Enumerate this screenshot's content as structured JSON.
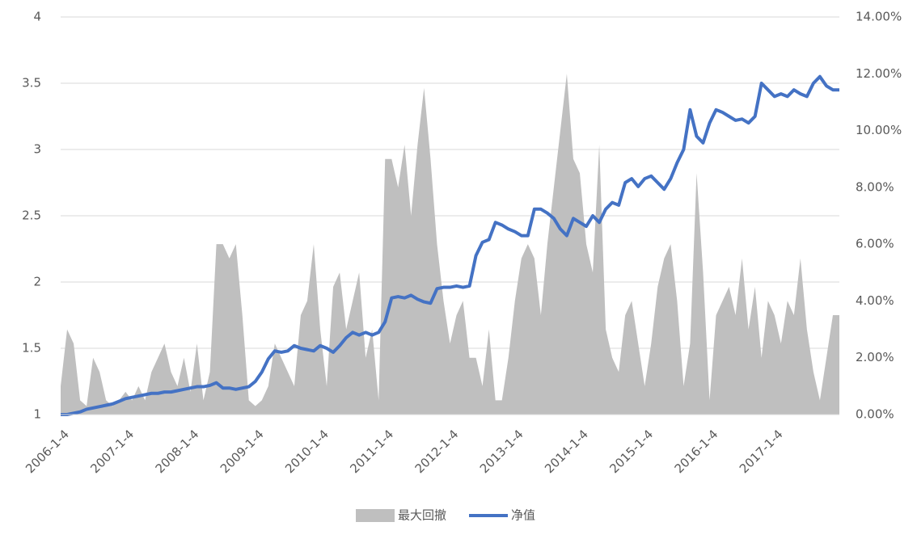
{
  "chart_data": {
    "type": "line",
    "categories": [
      "2006-1-4",
      null,
      null,
      null,
      null,
      null,
      null,
      null,
      null,
      null,
      "2007-1-4",
      null,
      null,
      null,
      null,
      null,
      null,
      null,
      null,
      null,
      "2008-1-4",
      null,
      null,
      null,
      null,
      null,
      null,
      null,
      null,
      null,
      "2009-1-4",
      null,
      null,
      null,
      null,
      null,
      null,
      null,
      null,
      null,
      "2010-1-4",
      null,
      null,
      null,
      null,
      null,
      null,
      null,
      null,
      null,
      "2011-1-4",
      null,
      null,
      null,
      null,
      null,
      null,
      null,
      null,
      null,
      "2012-1-4",
      null,
      null,
      null,
      null,
      null,
      null,
      null,
      null,
      null,
      "2013-1-4",
      null,
      null,
      null,
      null,
      null,
      null,
      null,
      null,
      null,
      "2014-1-4",
      null,
      null,
      null,
      null,
      null,
      null,
      null,
      null,
      null,
      "2015-1-4",
      null,
      null,
      null,
      null,
      null,
      null,
      null,
      null,
      null,
      "2016-1-4",
      null,
      null,
      null,
      null,
      null,
      null,
      null,
      null,
      null,
      "2017-1-4",
      null,
      null,
      null,
      null,
      null,
      null,
      null,
      null,
      null,
      null
    ],
    "series": [
      {
        "name": "最大回撤",
        "type": "area",
        "axis": "y2",
        "color": "#bfbfbf",
        "values": [
          1.0,
          3.0,
          2.5,
          0.5,
          0.3,
          2.0,
          1.5,
          0.5,
          0.3,
          0.5,
          0.8,
          0.5,
          1.0,
          0.5,
          1.5,
          2.0,
          2.5,
          1.5,
          1.0,
          2.0,
          0.8,
          2.5,
          0.5,
          1.5,
          6.0,
          6.0,
          5.5,
          6.0,
          3.5,
          0.5,
          0.3,
          0.5,
          1.0,
          2.5,
          2.0,
          1.5,
          1.0,
          3.5,
          4.0,
          6.0,
          3.0,
          1.0,
          4.5,
          5.0,
          3.0,
          4.0,
          5.0,
          2.0,
          3.0,
          0.5,
          9.0,
          9.0,
          8.0,
          9.5,
          7.0,
          9.5,
          11.5,
          9.0,
          6.0,
          4.0,
          2.5,
          3.5,
          4.0,
          2.0,
          2.0,
          1.0,
          3.0,
          0.5,
          0.5,
          2.0,
          4.0,
          5.5,
          6.0,
          5.5,
          3.5,
          6.0,
          8.0,
          10.0,
          12.0,
          9.0,
          8.5,
          6.0,
          5.0,
          9.5,
          3.0,
          2.0,
          1.5,
          3.5,
          4.0,
          2.5,
          1.0,
          2.5,
          4.5,
          5.5,
          6.0,
          4.0,
          1.0,
          2.5,
          8.5,
          5.0,
          0.5,
          3.5,
          4.0,
          4.5,
          3.5,
          5.5,
          3.0,
          4.5,
          2.0,
          4.0,
          3.5,
          2.5,
          4.0,
          3.5,
          5.5,
          3.0,
          1.5,
          0.5,
          2.0,
          3.5,
          3.5
        ]
      },
      {
        "name": "净值",
        "type": "line",
        "color": "#4472c4",
        "values": [
          1.0,
          1.0,
          1.01,
          1.02,
          1.04,
          1.05,
          1.06,
          1.07,
          1.08,
          1.1,
          1.12,
          1.13,
          1.14,
          1.15,
          1.16,
          1.16,
          1.17,
          1.17,
          1.18,
          1.19,
          1.2,
          1.21,
          1.21,
          1.22,
          1.24,
          1.2,
          1.2,
          1.19,
          1.2,
          1.21,
          1.25,
          1.32,
          1.42,
          1.48,
          1.47,
          1.48,
          1.52,
          1.5,
          1.49,
          1.48,
          1.52,
          1.5,
          1.47,
          1.52,
          1.58,
          1.62,
          1.6,
          1.62,
          1.6,
          1.62,
          1.7,
          1.88,
          1.89,
          1.88,
          1.9,
          1.87,
          1.85,
          1.84,
          1.95,
          1.96,
          1.96,
          1.97,
          1.96,
          1.97,
          2.2,
          2.3,
          2.32,
          2.45,
          2.43,
          2.4,
          2.38,
          2.35,
          2.35,
          2.55,
          2.55,
          2.52,
          2.48,
          2.4,
          2.35,
          2.48,
          2.45,
          2.42,
          2.5,
          2.45,
          2.55,
          2.6,
          2.58,
          2.75,
          2.78,
          2.72,
          2.78,
          2.8,
          2.75,
          2.7,
          2.78,
          2.9,
          3.0,
          3.3,
          3.1,
          3.05,
          3.2,
          3.3,
          3.28,
          3.25,
          3.22,
          3.23,
          3.2,
          3.25,
          3.5,
          3.45,
          3.4,
          3.42,
          3.4,
          3.45,
          3.42,
          3.4,
          3.5,
          3.55,
          3.48,
          3.45,
          3.45
        ]
      }
    ],
    "ylim": [
      1,
      4
    ],
    "yticks": [
      1,
      1.5,
      2,
      2.5,
      3,
      3.5,
      4
    ],
    "y2lim": [
      0,
      14
    ],
    "y2ticks": [
      {
        "value": 0,
        "label": "0.00%"
      },
      {
        "value": 2,
        "label": "2.00%"
      },
      {
        "value": 4,
        "label": "4.00%"
      },
      {
        "value": 6,
        "label": "6.00%"
      },
      {
        "value": 8,
        "label": "8.00%"
      },
      {
        "value": 10,
        "label": "10.00%"
      },
      {
        "value": 12,
        "label": "12.00%"
      },
      {
        "value": 14,
        "label": "14.00%"
      }
    ],
    "grid": true,
    "legend": "bottom"
  }
}
